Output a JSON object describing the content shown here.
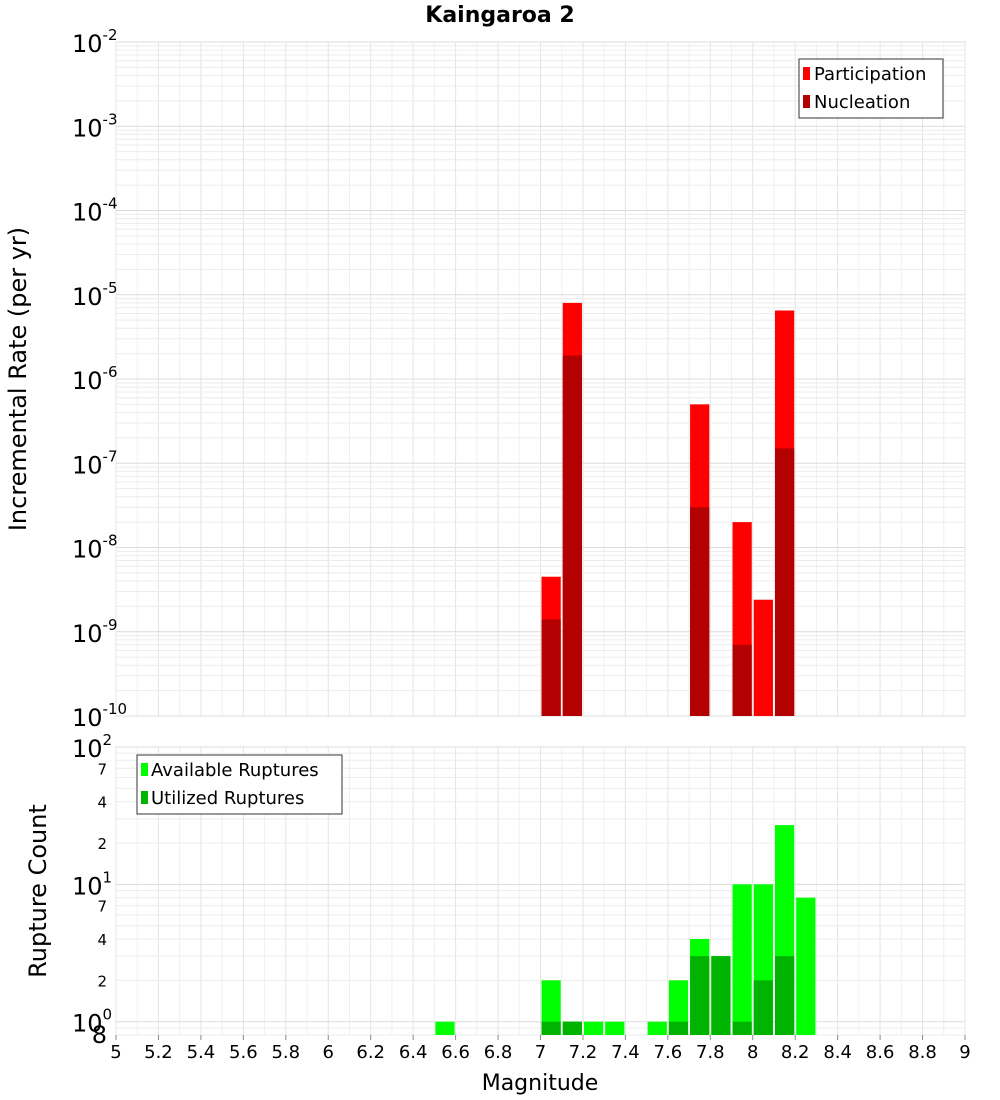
{
  "chart_data": [
    {
      "type": "bar",
      "title": "Kaingaroa 2",
      "xlabel": "",
      "ylabel": "Incremental Rate (per yr)",
      "yscale": "log",
      "ylim": [
        1e-10,
        0.01
      ],
      "xlim": [
        5,
        9
      ],
      "grid": true,
      "legend_position": "top-right",
      "colors": {
        "Participation": "#ff0000",
        "Nucleation": "#b30000"
      },
      "bin_width": 0.1,
      "series": [
        {
          "name": "Participation",
          "x": [
            7.05,
            7.15,
            7.75,
            7.95,
            8.05,
            8.15
          ],
          "values": [
            4.5e-09,
            8e-06,
            5e-07,
            2e-08,
            2.4e-09,
            6.5e-06
          ]
        },
        {
          "name": "Nucleation",
          "x": [
            7.05,
            7.15,
            7.75,
            7.95,
            8.15
          ],
          "values": [
            1.4e-09,
            1.9e-06,
            3e-08,
            7e-10,
            1.5e-07
          ]
        }
      ]
    },
    {
      "type": "bar",
      "title": "",
      "xlabel": "Magnitude",
      "ylabel": "Rupture Count",
      "yscale": "log",
      "ylim": [
        0.8,
        100
      ],
      "xlim": [
        5,
        9
      ],
      "grid": true,
      "legend_position": "top-left",
      "colors": {
        "Available Ruptures": "#00ff00",
        "Utilized Ruptures": "#00b300"
      },
      "bin_width": 0.1,
      "series": [
        {
          "name": "Available Ruptures",
          "x": [
            6.55,
            7.05,
            7.15,
            7.25,
            7.35,
            7.55,
            7.65,
            7.75,
            7.85,
            7.95,
            8.05,
            8.15,
            8.25
          ],
          "values": [
            1,
            2,
            1,
            1,
            1,
            1,
            2,
            4,
            3,
            10,
            10,
            27,
            8
          ]
        },
        {
          "name": "Utilized Ruptures",
          "x": [
            7.05,
            7.15,
            7.65,
            7.75,
            7.85,
            7.95,
            8.05,
            8.15
          ],
          "values": [
            1,
            1,
            1,
            3,
            3,
            1,
            2,
            3
          ]
        }
      ]
    }
  ],
  "x_ticks": [
    "5",
    "5.2",
    "5.4",
    "5.6",
    "5.8",
    "6",
    "6.2",
    "6.4",
    "6.6",
    "6.8",
    "7",
    "7.2",
    "7.4",
    "7.6",
    "7.8",
    "8",
    "8.2",
    "8.4",
    "8.6",
    "8.8",
    "9"
  ],
  "top_y_decades": [
    -10,
    -9,
    -8,
    -7,
    -6,
    -5,
    -4,
    -3,
    -2
  ],
  "bottom_y_decades": [
    0,
    1,
    2
  ],
  "bottom_y_minor_labels": [
    "2",
    "4",
    "7"
  ],
  "bottom_y_extra_label": "8"
}
